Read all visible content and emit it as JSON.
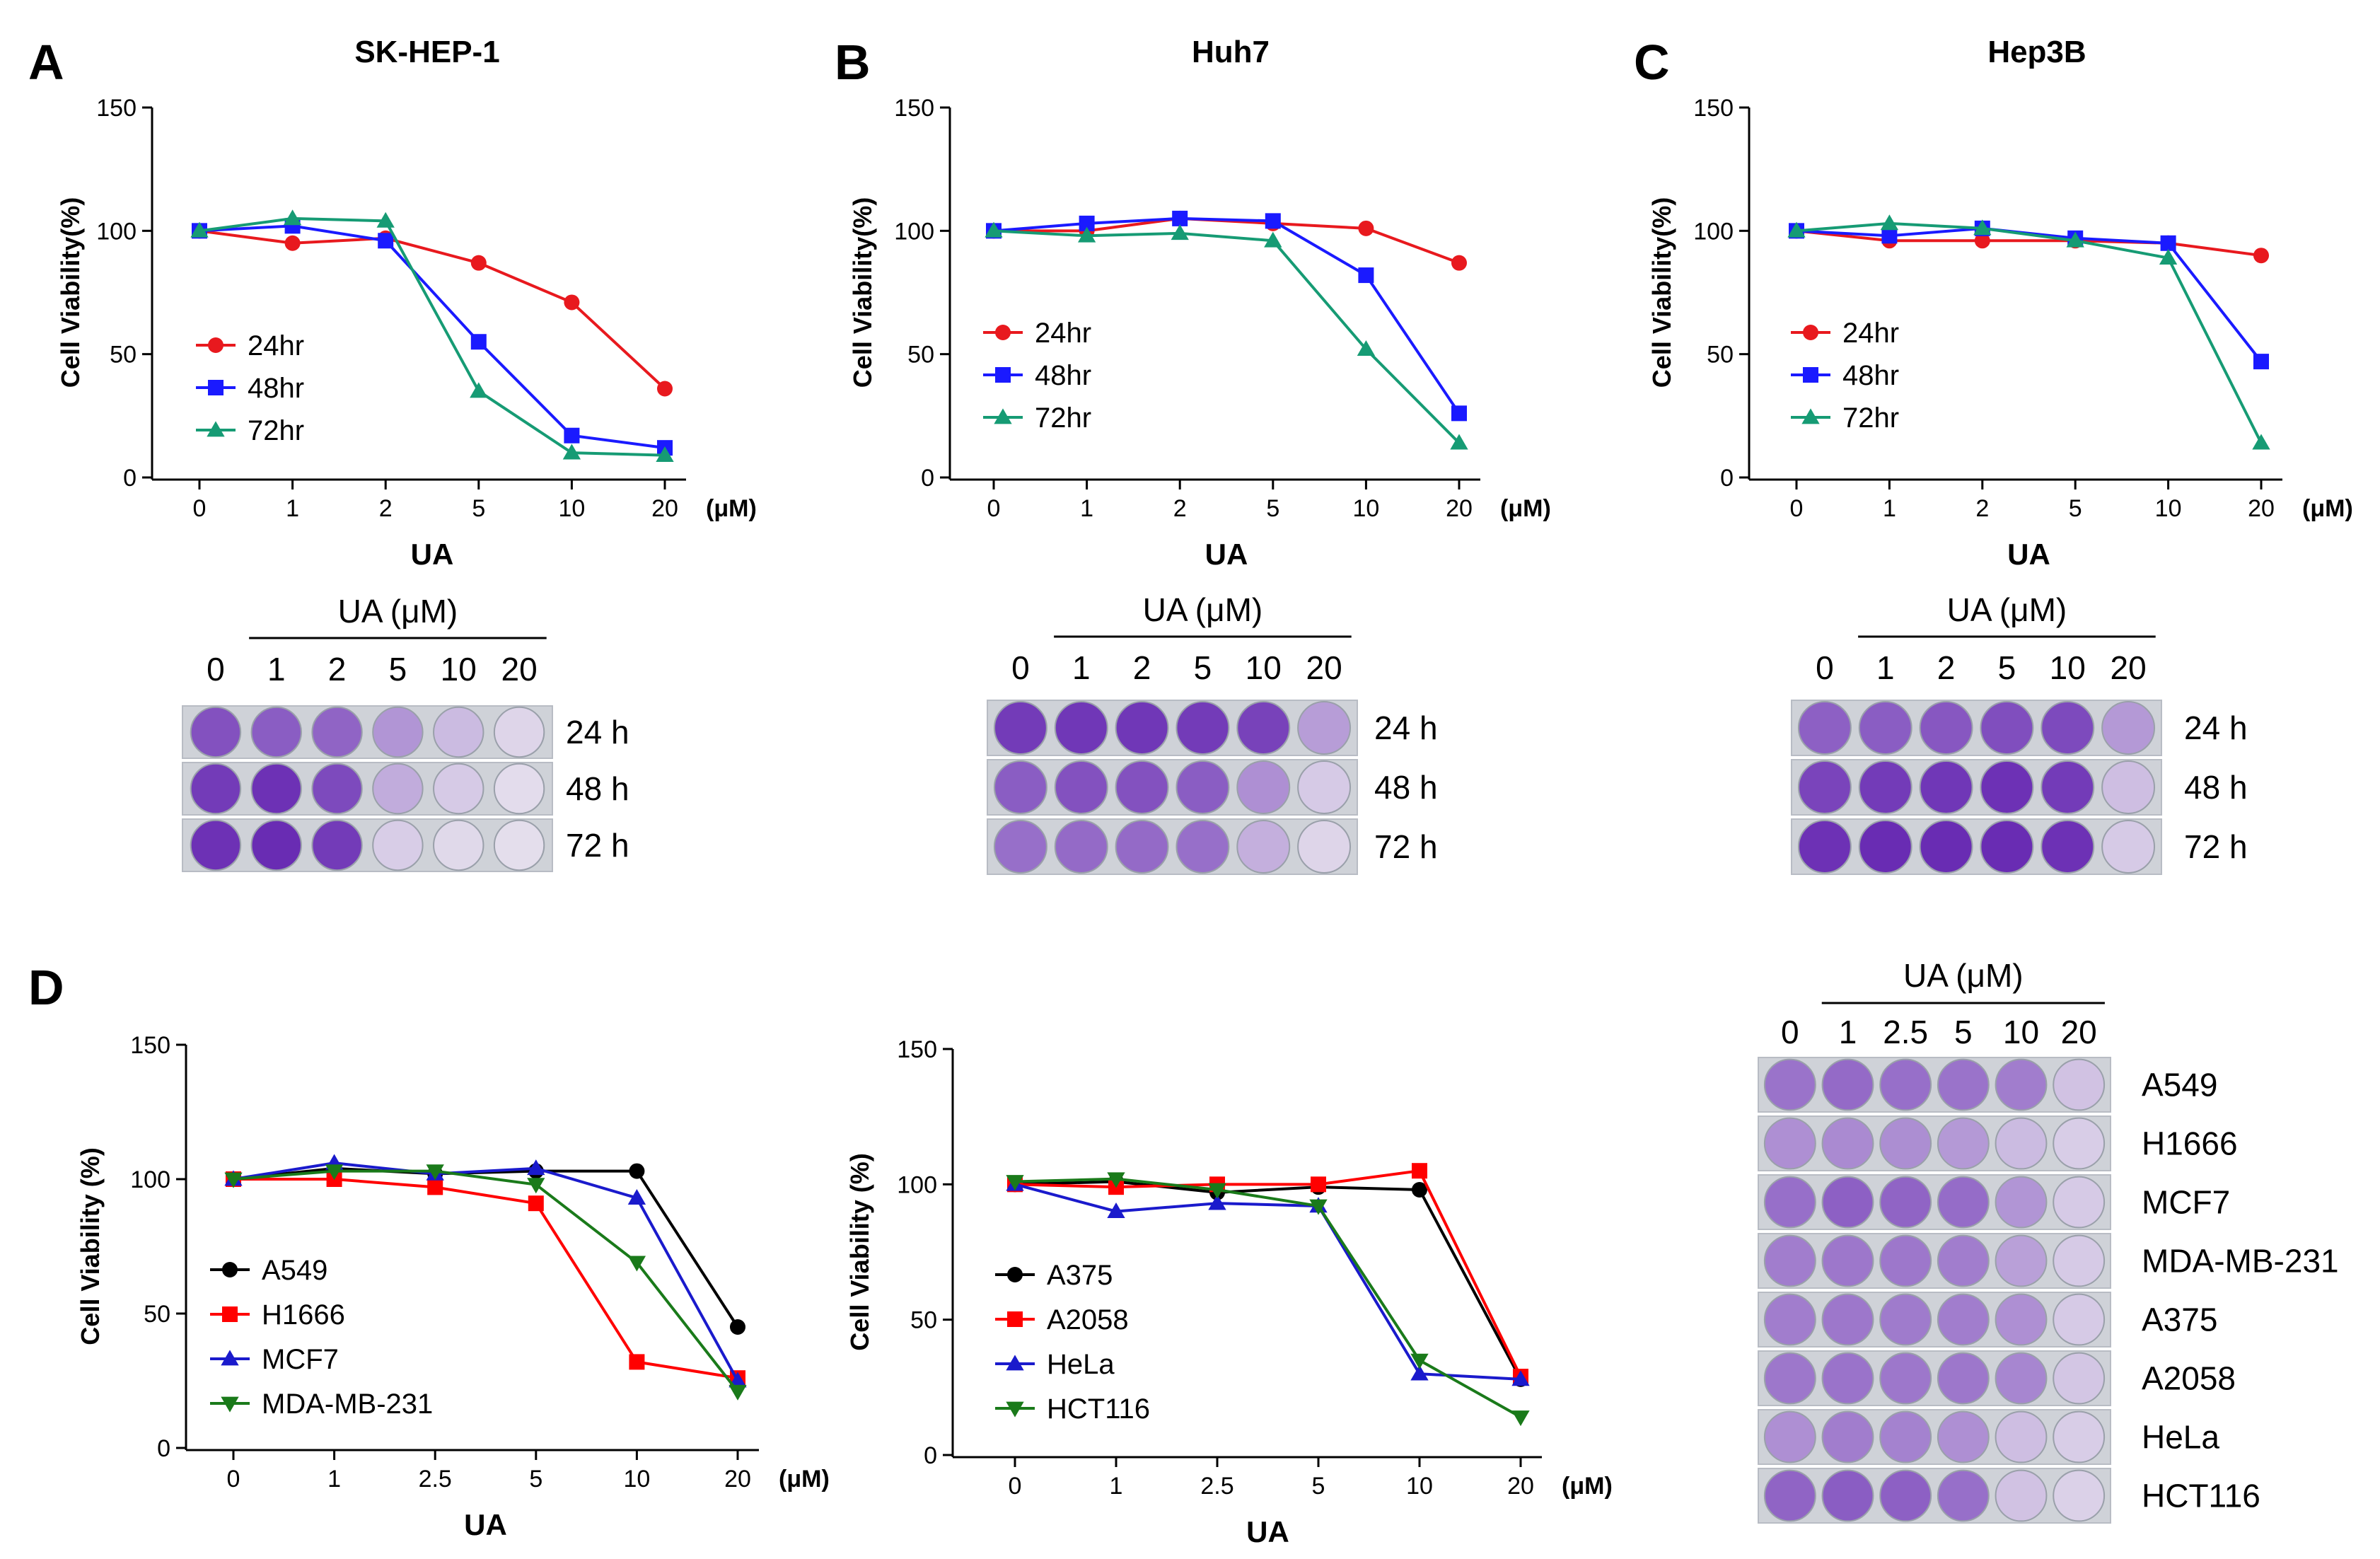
{
  "panels": [
    {
      "letter": "A"
    },
    {
      "letter": "B"
    },
    {
      "letter": "C"
    },
    {
      "letter": "D"
    }
  ],
  "chart_data": [
    {
      "id": "chart-a",
      "panel": "A",
      "type": "line",
      "title": "SK-HEP-1",
      "xlabel": "UA",
      "ylabel": "Cell Viability(%)",
      "x_unit": "(μM)",
      "categories": [
        "0",
        "1",
        "2",
        "5",
        "10",
        "20"
      ],
      "ylim": [
        0,
        150
      ],
      "yticks": [
        0,
        50,
        100,
        150
      ],
      "series": [
        {
          "name": "24hr",
          "color": "#e8191e",
          "marker": "circle",
          "values": [
            100,
            95,
            97,
            87,
            71,
            36
          ]
        },
        {
          "name": "48hr",
          "color": "#1a1aff",
          "marker": "square",
          "values": [
            100,
            102,
            96,
            55,
            17,
            12
          ]
        },
        {
          "name": "72hr",
          "color": "#169b74",
          "marker": "triangle-up",
          "values": [
            100,
            105,
            104,
            35,
            10,
            9
          ]
        }
      ]
    },
    {
      "id": "chart-b",
      "panel": "B",
      "type": "line",
      "title": "Huh7",
      "xlabel": "UA",
      "ylabel": "Cell Viability(%)",
      "x_unit": "(μM)",
      "categories": [
        "0",
        "1",
        "2",
        "5",
        "10",
        "20"
      ],
      "ylim": [
        0,
        150
      ],
      "yticks": [
        0,
        50,
        100,
        150
      ],
      "series": [
        {
          "name": "24hr",
          "color": "#e8191e",
          "marker": "circle",
          "values": [
            100,
            100,
            105,
            103,
            101,
            87
          ]
        },
        {
          "name": "48hr",
          "color": "#1a1aff",
          "marker": "square",
          "values": [
            100,
            103,
            105,
            104,
            82,
            26
          ]
        },
        {
          "name": "72hr",
          "color": "#169b74",
          "marker": "triangle-up",
          "values": [
            100,
            98,
            99,
            96,
            52,
            14
          ]
        }
      ]
    },
    {
      "id": "chart-c",
      "panel": "C",
      "type": "line",
      "title": "Hep3B",
      "xlabel": "UA",
      "ylabel": "Cell Viability(%)",
      "x_unit": "(μM)",
      "categories": [
        "0",
        "1",
        "2",
        "5",
        "10",
        "20"
      ],
      "ylim": [
        0,
        150
      ],
      "yticks": [
        0,
        50,
        100,
        150
      ],
      "series": [
        {
          "name": "24hr",
          "color": "#e8191e",
          "marker": "circle",
          "values": [
            100,
            96,
            96,
            96,
            95,
            90
          ]
        },
        {
          "name": "48hr",
          "color": "#1a1aff",
          "marker": "square",
          "values": [
            100,
            98,
            101,
            97,
            95,
            47
          ]
        },
        {
          "name": "72hr",
          "color": "#169b74",
          "marker": "triangle-up",
          "values": [
            100,
            103,
            101,
            96,
            89,
            14
          ]
        }
      ]
    },
    {
      "id": "chart-d1",
      "panel": "D",
      "type": "line",
      "title": "",
      "xlabel": "UA",
      "ylabel": "Cell Viability (%)",
      "x_unit": "(μM)",
      "categories": [
        "0",
        "1",
        "2.5",
        "5",
        "10",
        "20"
      ],
      "ylim": [
        0,
        150
      ],
      "yticks": [
        0,
        50,
        100,
        150
      ],
      "series": [
        {
          "name": "A549",
          "color": "#000000",
          "marker": "circle",
          "values": [
            100,
            104,
            102,
            103,
            103,
            45
          ]
        },
        {
          "name": "H1666",
          "color": "#ff0000",
          "marker": "square",
          "values": [
            100,
            100,
            97,
            91,
            32,
            26
          ]
        },
        {
          "name": "MCF7",
          "color": "#1a1acc",
          "marker": "triangle-up",
          "values": [
            100,
            106,
            102,
            104,
            93,
            25
          ]
        },
        {
          "name": "MDA-MB-231",
          "color": "#1a7a1a",
          "marker": "triangle-down",
          "values": [
            100,
            103,
            103,
            98,
            69,
            21
          ]
        }
      ]
    },
    {
      "id": "chart-d2",
      "panel": "D",
      "type": "line",
      "title": "",
      "xlabel": "UA",
      "ylabel": "Cell Viability (%)",
      "x_unit": "(μM)",
      "categories": [
        "0",
        "1",
        "2.5",
        "5",
        "10",
        "20"
      ],
      "ylim": [
        0,
        150
      ],
      "yticks": [
        0,
        50,
        100,
        150
      ],
      "series": [
        {
          "name": "A375",
          "color": "#000000",
          "marker": "circle",
          "values": [
            100,
            101,
            97,
            99,
            98,
            28
          ]
        },
        {
          "name": "A2058",
          "color": "#ff0000",
          "marker": "square",
          "values": [
            100,
            99,
            100,
            100,
            105,
            29
          ]
        },
        {
          "name": "HeLa",
          "color": "#1a1acc",
          "marker": "triangle-up",
          "values": [
            100,
            90,
            93,
            92,
            30,
            28
          ]
        },
        {
          "name": "HCT116",
          "color": "#1a7a1a",
          "marker": "triangle-down",
          "values": [
            101,
            102,
            98,
            92,
            35,
            14
          ]
        }
      ]
    }
  ],
  "plates": [
    {
      "id": "plate-a",
      "header": "UA (μM)",
      "concentrations": [
        "0",
        "1",
        "2",
        "5",
        "10",
        "20"
      ],
      "rows": [
        {
          "label": "24 h",
          "stain": [
            0.78,
            0.72,
            0.68,
            0.42,
            0.22,
            0.08
          ]
        },
        {
          "label": "48 h",
          "stain": [
            0.9,
            0.95,
            0.82,
            0.3,
            0.14,
            0.04
          ]
        },
        {
          "label": "72 h",
          "stain": [
            0.95,
            0.98,
            0.9,
            0.12,
            0.06,
            0.03
          ]
        }
      ]
    },
    {
      "id": "plate-b",
      "header": "UA (μM)",
      "concentrations": [
        "0",
        "1",
        "2",
        "5",
        "10",
        "20"
      ],
      "rows": [
        {
          "label": "24 h",
          "stain": [
            0.9,
            0.92,
            0.92,
            0.9,
            0.86,
            0.38
          ]
        },
        {
          "label": "48 h",
          "stain": [
            0.72,
            0.78,
            0.78,
            0.72,
            0.45,
            0.14
          ]
        },
        {
          "label": "72 h",
          "stain": [
            0.62,
            0.65,
            0.65,
            0.62,
            0.28,
            0.08
          ]
        }
      ]
    },
    {
      "id": "plate-c",
      "header": "UA (μM)",
      "concentrations": [
        "0",
        "1",
        "2",
        "5",
        "10",
        "20"
      ],
      "rows": [
        {
          "label": "24 h",
          "stain": [
            0.7,
            0.72,
            0.75,
            0.8,
            0.82,
            0.4
          ]
        },
        {
          "label": "48 h",
          "stain": [
            0.85,
            0.9,
            0.92,
            0.95,
            0.9,
            0.2
          ]
        },
        {
          "label": "72 h",
          "stain": [
            0.95,
            0.98,
            0.98,
            0.98,
            0.95,
            0.14
          ]
        }
      ]
    },
    {
      "id": "plate-d",
      "header": "UA (μM)",
      "concentrations": [
        "0",
        "1",
        "2.5",
        "5",
        "10",
        "20"
      ],
      "rows": [
        {
          "label": "A549",
          "stain": [
            0.6,
            0.65,
            0.62,
            0.6,
            0.55,
            0.18
          ]
        },
        {
          "label": "H1666",
          "stain": [
            0.45,
            0.48,
            0.46,
            0.4,
            0.22,
            0.12
          ]
        },
        {
          "label": "MCF7",
          "stain": [
            0.62,
            0.7,
            0.68,
            0.64,
            0.42,
            0.14
          ]
        },
        {
          "label": "MDA-MB-231",
          "stain": [
            0.55,
            0.58,
            0.58,
            0.55,
            0.36,
            0.14
          ]
        },
        {
          "label": "A375",
          "stain": [
            0.55,
            0.58,
            0.56,
            0.55,
            0.45,
            0.14
          ]
        },
        {
          "label": "A2058",
          "stain": [
            0.58,
            0.6,
            0.58,
            0.58,
            0.5,
            0.16
          ]
        },
        {
          "label": "HeLa",
          "stain": [
            0.45,
            0.55,
            0.52,
            0.45,
            0.2,
            0.12
          ]
        },
        {
          "label": "HCT116",
          "stain": [
            0.68,
            0.72,
            0.7,
            0.62,
            0.18,
            0.1
          ]
        }
      ]
    }
  ]
}
